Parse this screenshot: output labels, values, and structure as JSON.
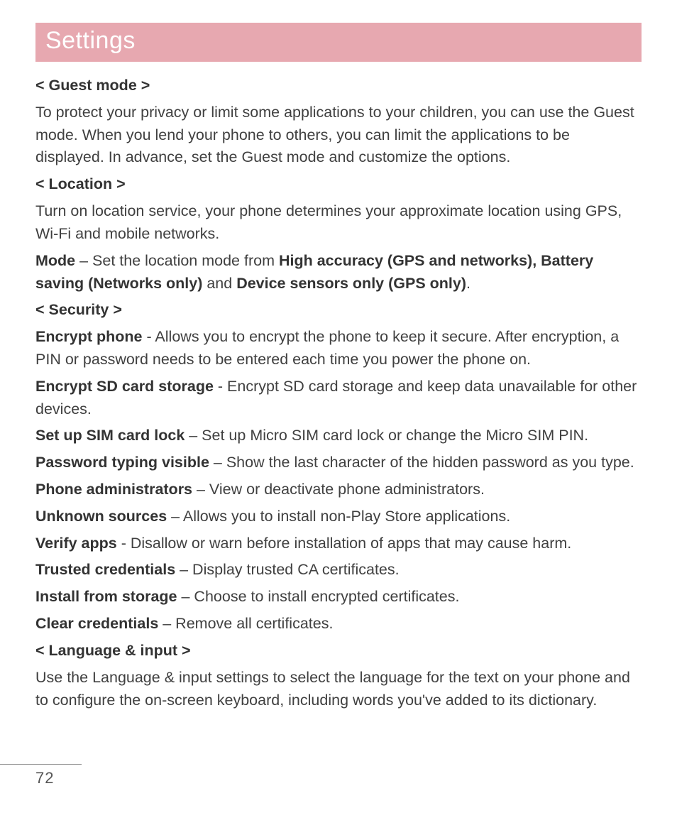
{
  "page": {
    "title": "Settings",
    "number": "72",
    "colors": {
      "title_bar_bg": "#e7a8b0",
      "title_text": "#ffffff",
      "body_text": "#404040",
      "bold_text": "#333333",
      "footer_line": "#9a9a9a",
      "background": "#ffffff"
    },
    "typography": {
      "title_fontsize": 34,
      "body_fontsize": 21.5,
      "line_height": 1.48,
      "font_family": "Century Gothic / Futura-like geometric sans"
    }
  },
  "sections": {
    "guest_mode": {
      "header": "< Guest mode >",
      "body": "To protect your privacy or limit some applications to your children, you can use the Guest mode. When you lend your phone to others, you can limit the applications to be displayed. In advance, set the Guest mode and customize the options."
    },
    "location": {
      "header": "< Location >",
      "body": "Turn on location service, your phone determines your approximate location using GPS, Wi-Fi and mobile networks.",
      "mode_label": "Mode",
      "mode_pre": " – Set the location mode from ",
      "mode_opt1": "High accuracy (GPS and networks), Battery saving (Networks only)",
      "mode_sep": " and ",
      "mode_opt2": "Device sensors only (GPS only)",
      "mode_end": "."
    },
    "security": {
      "header": "< Security >",
      "items": {
        "encrypt_phone": {
          "label": "Encrypt phone",
          "text": " - Allows you to encrypt the phone to keep it secure. After encryption, a PIN or password needs to be entered each time you power the phone on."
        },
        "encrypt_sd": {
          "label": "Encrypt SD card storage",
          "text": " - Encrypt SD card storage and keep data unavailable for other devices."
        },
        "sim_lock": {
          "label": "Set up SIM card lock",
          "text": " – Set up Micro SIM card lock or change the Micro SIM PIN."
        },
        "pw_visible": {
          "label": "Password typing visible",
          "text": " – Show the last character of the hidden password as you type."
        },
        "phone_admins": {
          "label": "Phone administrators",
          "text": " – View or deactivate phone administrators."
        },
        "unknown_src": {
          "label": "Unknown sources",
          "text": " – Allows you to install non-Play Store applications."
        },
        "verify_apps": {
          "label": "Verify apps",
          "text": " - Disallow or warn before installation of apps that may cause harm."
        },
        "trusted_cred": {
          "label": "Trusted credentials",
          "text": " – Display trusted CA certificates."
        },
        "install_stor": {
          "label": "Install from storage",
          "text": " – Choose to install encrypted certificates."
        },
        "clear_cred": {
          "label": "Clear credentials",
          "text": " – Remove all certificates."
        }
      }
    },
    "language_input": {
      "header": "< Language & input >",
      "body": "Use the Language & input settings to select the language for the text on your phone and to configure the on-screen keyboard, including words you've added to its dictionary."
    }
  }
}
